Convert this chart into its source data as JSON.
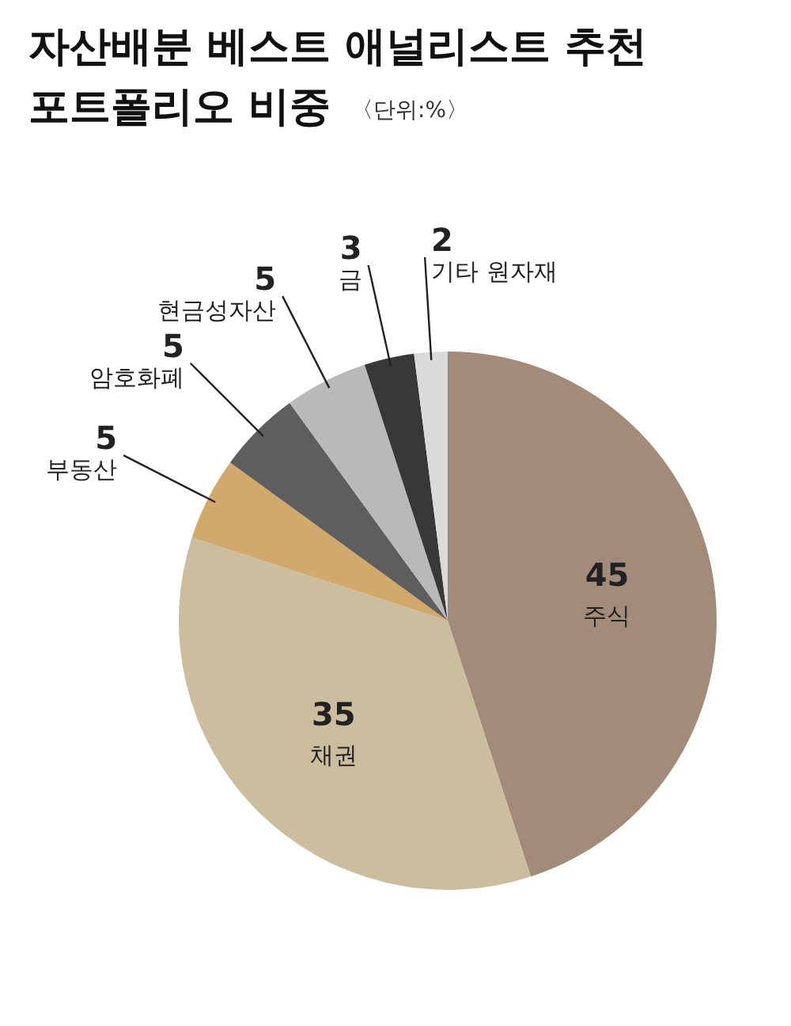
{
  "chart_data": {
    "type": "pie",
    "title": "자산배분 베스트 애널리스트 추천\n포트폴리오 비중",
    "subtitle": "〈단위:%〉",
    "categories": [
      "주식",
      "채권",
      "부동산",
      "암호화폐",
      "현금성자산",
      "금",
      "기타 원자재"
    ],
    "values": [
      45,
      35,
      5,
      5,
      5,
      3,
      2
    ],
    "colors": [
      "#a38b7a",
      "#cdbd9f",
      "#d2a96c",
      "#5e5e5e",
      "#b9b9b9",
      "#383838",
      "#dadada"
    ],
    "data_labels": true
  }
}
